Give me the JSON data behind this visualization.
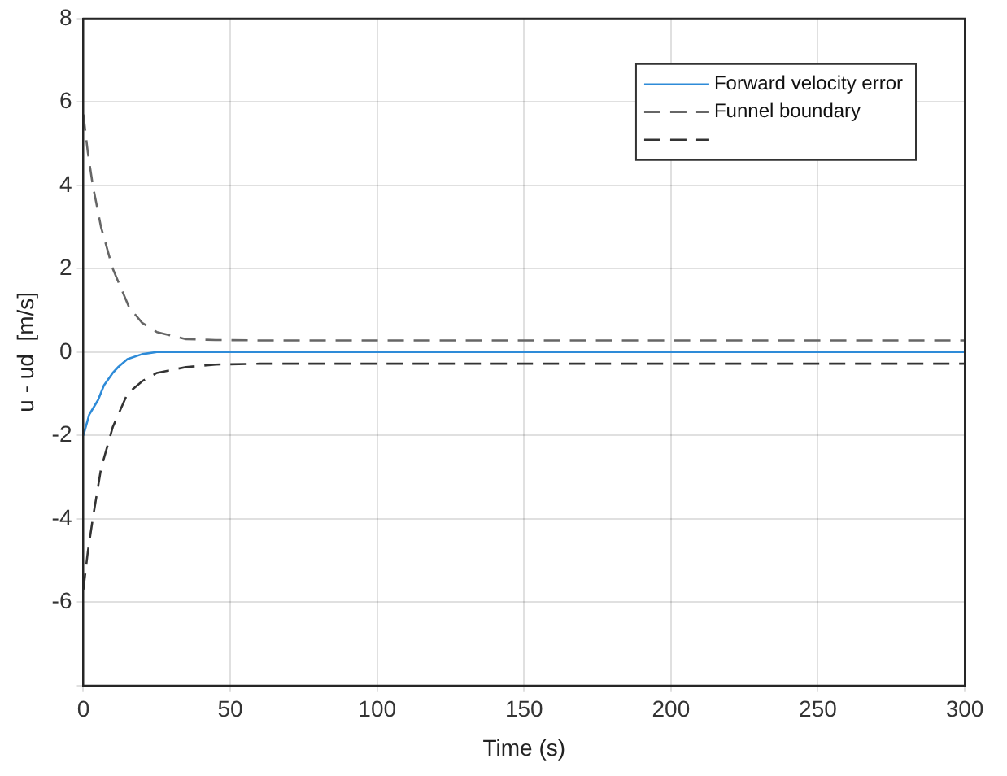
{
  "chart_data": {
    "type": "line",
    "xlabel": "Time (s)",
    "ylabel": "u - ud  [m/s]",
    "xlim": [
      0,
      300
    ],
    "xticks": [
      0,
      50,
      100,
      150,
      200,
      250,
      300
    ],
    "ylim": [
      -8,
      8
    ],
    "yticks": [
      {
        "value": -8,
        "label": null
      },
      -6,
      -4,
      -2,
      0,
      2,
      4,
      6,
      8
    ],
    "grid": true,
    "legend": "top right",
    "marker": "none",
    "series": [
      {
        "name": "Forward velocity error",
        "color": "#2e8bd8",
        "line_style": "solid",
        "x": [
          0,
          2,
          5,
          7,
          10,
          12,
          15,
          20,
          25,
          30,
          50,
          100,
          200,
          300
        ],
        "values": [
          -2,
          -1.5,
          -1.15,
          -0.8,
          -0.5,
          -0.35,
          -0.17,
          -0.05,
          0,
          0,
          0,
          0,
          0,
          0
        ]
      },
      {
        "name": "Funnel boundary",
        "color": "#666666",
        "line_style": "dashed",
        "x": [
          0,
          1.5,
          3.2,
          6,
          10,
          15.6,
          20,
          25,
          35,
          45,
          60,
          100,
          200,
          300
        ],
        "values": [
          5.7,
          4.8,
          4.0,
          3.0,
          2.0,
          1.07,
          0.7,
          0.48,
          0.31,
          0.29,
          0.28,
          0.28,
          0.28,
          0.28
        ]
      },
      {
        "color": "#333333",
        "line_style": "dashed",
        "x": [
          0,
          1.5,
          3.2,
          6,
          10,
          15,
          20,
          25,
          35,
          45,
          60,
          100,
          200,
          300
        ],
        "values": [
          -5.7,
          -4.8,
          -4.0,
          -2.8,
          -1.8,
          -1.0,
          -0.7,
          -0.5,
          -0.36,
          -0.3,
          -0.28,
          -0.28,
          -0.28,
          -0.28
        ]
      }
    ]
  }
}
